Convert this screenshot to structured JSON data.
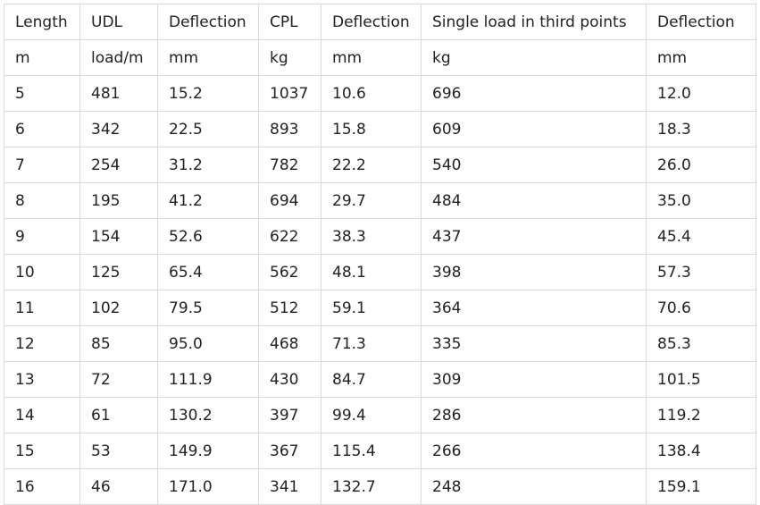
{
  "table": {
    "header_row": [
      "Length",
      "UDL",
      "Deflection",
      "CPL",
      "Deflection",
      "Single load in third points",
      "Deflection"
    ],
    "units_row": [
      "m",
      "load/m",
      "mm",
      "kg",
      "mm",
      "kg",
      "mm"
    ],
    "rows": [
      [
        "5",
        "481",
        "15.2",
        "1037",
        "10.6",
        "696",
        "12.0"
      ],
      [
        "6",
        "342",
        "22.5",
        "893",
        "15.8",
        "609",
        "18.3"
      ],
      [
        "7",
        "254",
        "31.2",
        "782",
        "22.2",
        "540",
        "26.0"
      ],
      [
        "8",
        "195",
        "41.2",
        "694",
        "29.7",
        "484",
        "35.0"
      ],
      [
        "9",
        "154",
        "52.6",
        "622",
        "38.3",
        "437",
        "45.4"
      ],
      [
        "10",
        "125",
        "65.4",
        "562",
        "48.1",
        "398",
        "57.3"
      ],
      [
        "11",
        "102",
        "79.5",
        "512",
        "59.1",
        "364",
        "70.6"
      ],
      [
        "12",
        "85",
        "95.0",
        "468",
        "71.3",
        "335",
        "85.3"
      ],
      [
        "13",
        "72",
        "111.9",
        "430",
        "84.7",
        "309",
        "101.5"
      ],
      [
        "14",
        "61",
        "130.2",
        "397",
        "99.4",
        "286",
        "119.2"
      ],
      [
        "15",
        "53",
        "149.9",
        "367",
        "115.4",
        "266",
        "138.4"
      ],
      [
        "16",
        "46",
        "171.0",
        "341",
        "132.7",
        "248",
        "159.1"
      ]
    ]
  }
}
